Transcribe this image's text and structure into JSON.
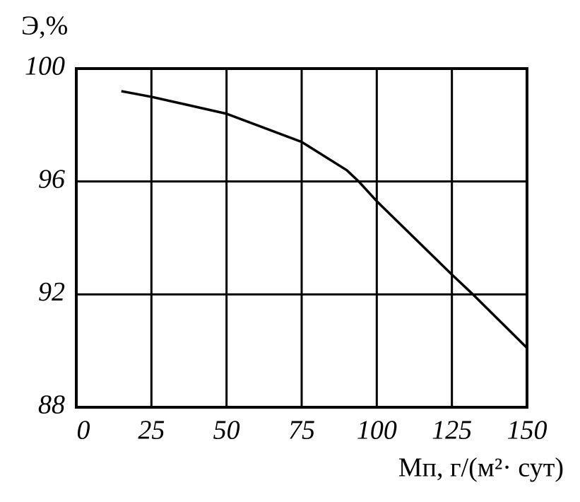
{
  "chart_data": {
    "type": "line",
    "ylabel": "Э,%",
    "xlabel": "Mп, г/(м²· сут)",
    "x": [
      15,
      25,
      50,
      75,
      90,
      94,
      100,
      125,
      132,
      150
    ],
    "series": [
      {
        "color": "#000000",
        "values": [
          99.2,
          99.0,
          98.4,
          97.4,
          96.4,
          96.0,
          95.3,
          92.7,
          92.0,
          90.1
        ]
      }
    ],
    "xlim": [
      0,
      150
    ],
    "xticks": [
      0,
      25,
      50,
      75,
      100,
      125,
      150
    ],
    "ylim": [
      88,
      100
    ],
    "yticks": [
      88,
      92,
      96,
      100
    ],
    "grid": true
  }
}
